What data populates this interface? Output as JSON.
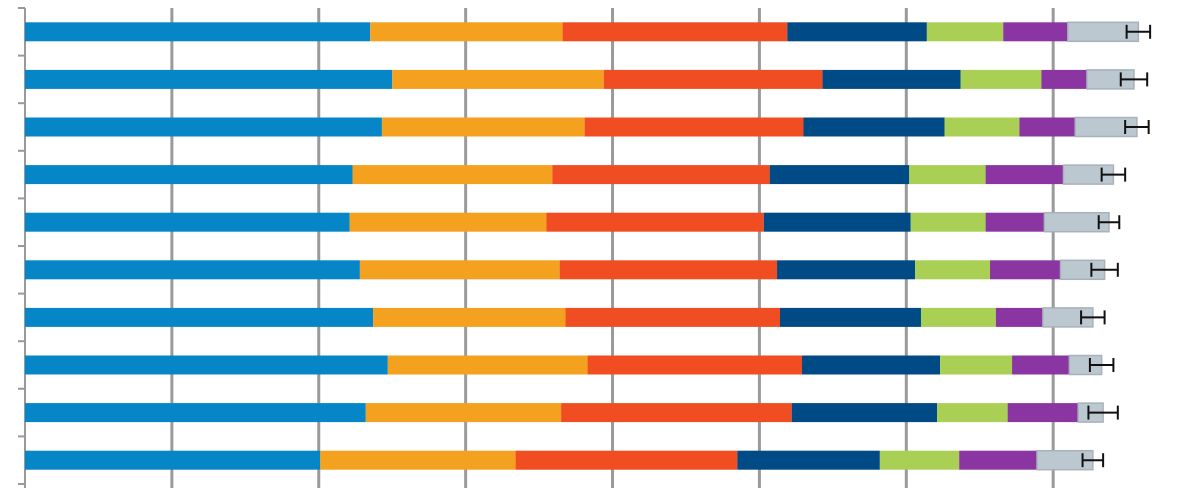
{
  "chart_data": {
    "type": "bar",
    "orientation": "horizontal",
    "stacked": true,
    "title": "",
    "xlabel": "",
    "ylabel": "",
    "xlim": [
      0,
      770
    ],
    "xticks": [
      0,
      100,
      200,
      300,
      400,
      500,
      600,
      700
    ],
    "grid": "vertical",
    "legend": "none",
    "error_bars": true,
    "categories": [
      "",
      "",
      "",
      "",
      "",
      "",
      "",
      "",
      "",
      ""
    ],
    "series": [
      {
        "color": "#0786c7",
        "values": [
          235,
          250,
          243,
          223,
          221,
          228,
          237,
          247,
          232,
          201
        ]
      },
      {
        "color": "#f4a120",
        "values": [
          131,
          144,
          138,
          136,
          134,
          136,
          131,
          136,
          133,
          133
        ]
      },
      {
        "color": "#f14d23",
        "values": [
          153,
          149,
          149,
          148,
          148,
          148,
          146,
          146,
          157,
          151
        ]
      },
      {
        "color": "#004a86",
        "values": [
          95,
          94,
          96,
          95,
          100,
          94,
          96,
          94,
          99,
          97
        ]
      },
      {
        "color": "#a9cf55",
        "values": [
          52,
          55,
          51,
          52,
          51,
          51,
          51,
          49,
          48,
          54
        ]
      },
      {
        "color": "#8b35a3",
        "values": [
          44,
          31,
          38,
          53,
          40,
          48,
          32,
          39,
          48,
          53
        ]
      },
      {
        "color": "#bcc8d0",
        "values": [
          48,
          32,
          42,
          34,
          44,
          30,
          34,
          22,
          17,
          38
        ]
      }
    ],
    "errors": [
      8,
      9,
      8,
      8,
      7,
      9,
      8,
      8,
      10,
      7
    ]
  }
}
